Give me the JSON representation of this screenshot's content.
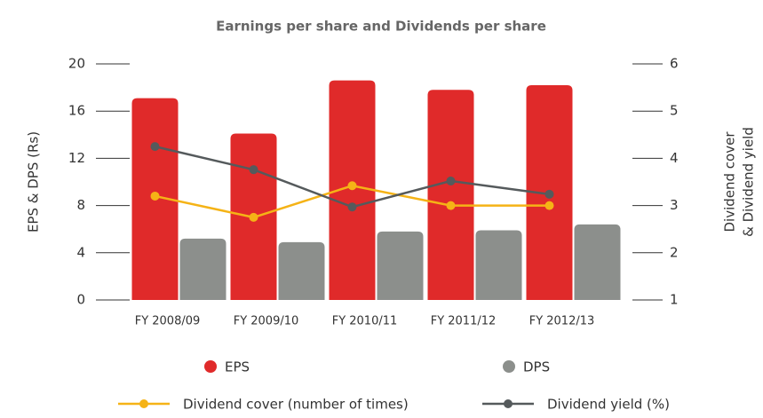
{
  "chart_data": {
    "type": "bar",
    "title": "Earnings per share and Dividends per share",
    "ylabel": "EPS & DPS (Rs)",
    "y2label": [
      "Dividend cover",
      "& Dividend yield"
    ],
    "categories": [
      "FY 2008/09",
      "FY 2009/10",
      "FY 2010/11",
      "FY 2011/12",
      "FY 2012/13"
    ],
    "ylim": [
      0,
      20
    ],
    "yticks": [
      0,
      4,
      8,
      12,
      16,
      20
    ],
    "y2lim": [
      1,
      6
    ],
    "y2ticks": [
      1,
      2,
      3,
      4,
      5,
      6
    ],
    "series": [
      {
        "name": "EPS",
        "type": "bar",
        "color": "#e02a2a",
        "values": [
          17.1,
          14.1,
          18.6,
          17.8,
          18.2
        ]
      },
      {
        "name": "DPS",
        "type": "bar",
        "color": "#8c8f8c",
        "values": [
          5.2,
          4.9,
          5.8,
          5.9,
          6.4
        ]
      },
      {
        "name": "Dividend cover (number of times)",
        "type": "line",
        "axis": "y2",
        "color": "#f5b316",
        "values": [
          3.2,
          2.75,
          3.42,
          3.0,
          3.0
        ]
      },
      {
        "name": "Dividend yield (%)",
        "type": "line",
        "axis": "y2",
        "color": "#555a5c",
        "values": [
          4.25,
          3.76,
          2.97,
          3.52,
          3.24
        ]
      }
    ]
  }
}
